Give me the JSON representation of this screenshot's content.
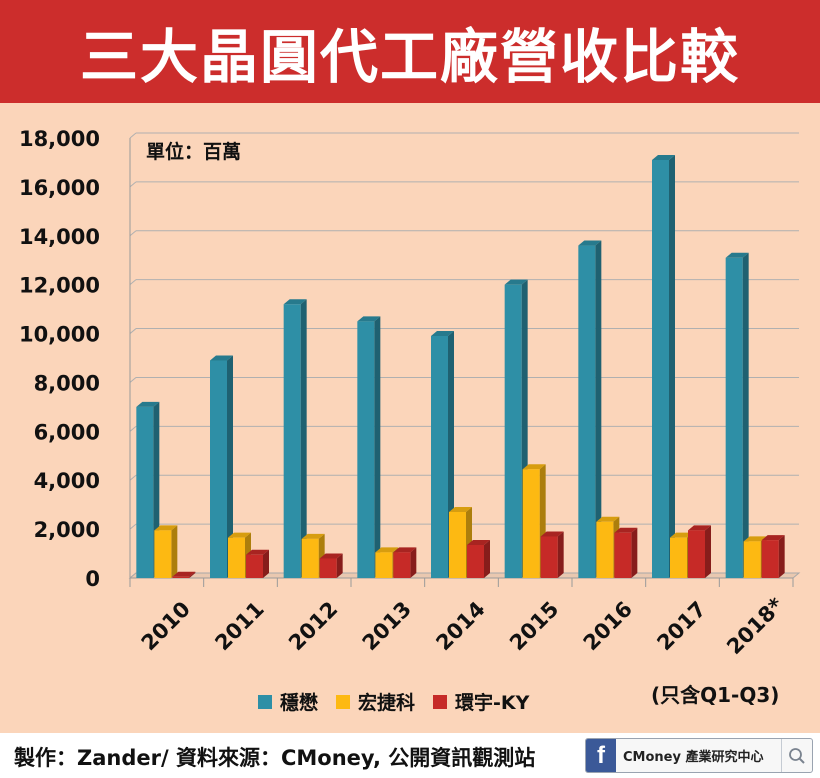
{
  "title": "三大晶圓代工廠營收比較",
  "footer": {
    "credit": "製作：Zander/ 資料來源：CMoney, 公開資訊觀測站",
    "brand_icon": "f",
    "brand_text": "CMoney 產業研究中心"
  },
  "chart_data": {
    "type": "bar",
    "unit_label": "單位：百萬",
    "footnote": "(只含Q1-Q3)",
    "categories": [
      "2010",
      "2011",
      "2012",
      "2013",
      "2014",
      "2015",
      "2016",
      "2017",
      "2018*"
    ],
    "ylim": [
      0,
      18000
    ],
    "yticks": [
      0,
      2000,
      4000,
      6000,
      8000,
      10000,
      12000,
      14000,
      16000,
      18000
    ],
    "ytick_labels": [
      "0",
      "2,000",
      "4,000",
      "6,000",
      "8,000",
      "10,000",
      "12,000",
      "14,000",
      "16,000",
      "18,000"
    ],
    "grid": true,
    "legend_position": "bottom",
    "series": [
      {
        "name": "穩懋",
        "color": "#2e8fa6",
        "values": [
          7000,
          8900,
          11200,
          10500,
          9900,
          12000,
          13600,
          17100,
          13100
        ]
      },
      {
        "name": "宏捷科",
        "color": "#fdb912",
        "values": [
          1950,
          1650,
          1600,
          1050,
          2700,
          4450,
          2300,
          1650,
          1500
        ]
      },
      {
        "name": "環宇-KY",
        "color": "#c62a27",
        "values": [
          50,
          950,
          800,
          1050,
          1350,
          1700,
          1850,
          1950,
          1550
        ]
      }
    ]
  }
}
